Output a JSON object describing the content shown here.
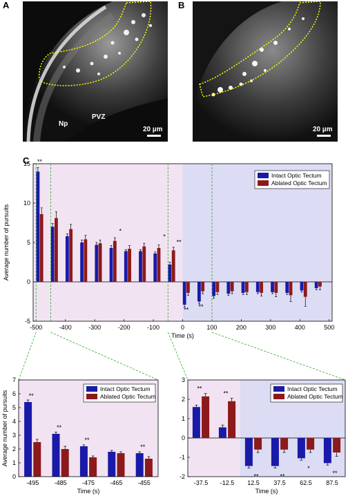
{
  "panels": {
    "a": {
      "label": "A",
      "region_labels": [
        "Np",
        "PVZ"
      ],
      "scalebar": "20 µm"
    },
    "b": {
      "label": "B",
      "scalebar": "20 µm"
    },
    "c": {
      "label": "C"
    }
  },
  "colors": {
    "intact": "#1a1aa8",
    "ablated": "#8c1a1a",
    "pre_bg": "#f2e3f2",
    "post_bg": "#dcdcf4",
    "zoom": "#22aa22",
    "outline": "#ffff00"
  },
  "chart_data": [
    {
      "type": "bar",
      "xlabel": "Time (s)",
      "ylabel": "Average number of pursuits",
      "xlim": [
        -510,
        510
      ],
      "ylim": [
        -5,
        15
      ],
      "xticks": [
        -500,
        -400,
        -300,
        -200,
        -100,
        0,
        100,
        200,
        300,
        400,
        500
      ],
      "yticks": [
        -5,
        0,
        5,
        10,
        15
      ],
      "legend": "top-right",
      "x": [
        -487.5,
        -462.5,
        -437.5,
        -412.5,
        -387.5,
        -362.5,
        -337.5,
        -312.5,
        -287.5,
        -262.5,
        -237.5,
        -212.5,
        -187.5,
        -162.5,
        -137.5,
        -112.5,
        -87.5,
        -62.5,
        -37.5,
        -12.5,
        12.5,
        37.5,
        62.5,
        87.5,
        112.5,
        137.5,
        162.5,
        187.5,
        212.5,
        237.5,
        262.5,
        287.5,
        312.5,
        337.5,
        362.5,
        387.5,
        412.5,
        437.5,
        462.5,
        487.5
      ],
      "series": [
        {
          "name": "Intact Optic Tectum",
          "values": [
            14,
            null,
            7,
            null,
            5.8,
            null,
            5,
            null,
            4.7,
            null,
            4.3,
            null,
            3.9,
            null,
            3.9,
            null,
            3.6,
            null,
            2.2,
            null,
            -2.9,
            null,
            -2.5,
            null,
            -1.8,
            null,
            -1.5,
            null,
            -1.4,
            null,
            -1.3,
            null,
            -1.3,
            null,
            -1.4,
            null,
            -1.1,
            null,
            -0.8,
            null
          ]
        },
        {
          "name": "Ablated Optic Tectum",
          "values": [
            8.6,
            null,
            8.1,
            null,
            6.7,
            null,
            5.4,
            null,
            4.9,
            null,
            5.2,
            null,
            4.2,
            null,
            4.5,
            null,
            4.3,
            null,
            4,
            null,
            -1.4,
            null,
            -1.2,
            null,
            -1.3,
            null,
            -1.2,
            null,
            -1.3,
            null,
            -1.4,
            null,
            -1.4,
            null,
            -1.7,
            null,
            -1.9,
            null,
            -0.6,
            null
          ]
        }
      ],
      "errors": {
        "intact": [
          0.5,
          null,
          0.4,
          null,
          0.3,
          null,
          0.3,
          null,
          0.3,
          null,
          0.3,
          null,
          0.2,
          null,
          0.2,
          null,
          0.2,
          null,
          0.3,
          null,
          0.3,
          null,
          0.3,
          null,
          0.3,
          null,
          0.2,
          null,
          0.2,
          null,
          0.2,
          null,
          0.2,
          null,
          0.2,
          null,
          0.2,
          null,
          0.2,
          null
        ],
        "ablated": [
          0.8,
          null,
          0.8,
          null,
          0.6,
          null,
          0.5,
          null,
          0.4,
          null,
          0.4,
          null,
          0.4,
          null,
          0.4,
          null,
          0.4,
          null,
          0.4,
          null,
          0.3,
          null,
          0.3,
          null,
          0.3,
          null,
          0.3,
          null,
          0.3,
          null,
          0.4,
          null,
          0.5,
          null,
          0.8,
          null,
          1.2,
          null,
          0.4,
          null
        ]
      },
      "annotations": [
        {
          "x": -487.5,
          "y": 15,
          "text": "**"
        },
        {
          "x": -212.5,
          "y": 6.2,
          "text": "*"
        },
        {
          "x": -62.5,
          "y": 5.5,
          "text": "*"
        },
        {
          "x": -12.5,
          "y": 4.8,
          "text": "**"
        },
        {
          "x": 12.5,
          "y": -3.8,
          "text": "**"
        },
        {
          "x": 62.5,
          "y": -3.4,
          "text": "**"
        }
      ],
      "shaded_regions": [
        {
          "from": -510,
          "to": 0,
          "kind": "pre"
        },
        {
          "from": 0,
          "to": 510,
          "kind": "post"
        }
      ],
      "zoom_lines_x": [
        -500,
        -450,
        -50,
        100
      ]
    },
    {
      "type": "bar",
      "xlabel": "Time (s)",
      "ylabel": "Average number of pursuits",
      "categories": [
        "-495",
        "-485",
        "-475",
        "-465",
        "-455"
      ],
      "ylim": [
        0,
        7
      ],
      "yticks": [
        0,
        1,
        2,
        3,
        4,
        5,
        6,
        7
      ],
      "legend": "top-right",
      "series": [
        {
          "name": "Intact Optic Tectum",
          "values": [
            5.4,
            3.1,
            2.2,
            1.8,
            1.7
          ]
        },
        {
          "name": "Ablated Optic Tectum",
          "values": [
            2.5,
            2,
            1.4,
            1.7,
            1.3
          ]
        }
      ],
      "errors": {
        "intact": [
          0.15,
          0.12,
          0.1,
          0.1,
          0.1
        ],
        "ablated": [
          0.2,
          0.2,
          0.1,
          0.1,
          0.15
        ]
      },
      "annotations": [
        {
          "index": 0,
          "text": "**"
        },
        {
          "index": 1,
          "text": "**"
        },
        {
          "index": 2,
          "text": "**"
        },
        {
          "index": 4,
          "text": "**"
        }
      ]
    },
    {
      "type": "bar",
      "xlabel": "Time (s)",
      "ylabel": "",
      "categories": [
        "-37.5",
        "-12.5",
        "12.5",
        "37.5",
        "62.5",
        "87.5"
      ],
      "ylim": [
        -2,
        3
      ],
      "yticks": [
        -2,
        -1,
        0,
        1,
        2,
        3
      ],
      "legend": "top-right",
      "series": [
        {
          "name": "Intact Optic Tectum",
          "values": [
            1.6,
            0.55,
            -1.45,
            -1.45,
            -1.05,
            -1.3
          ]
        },
        {
          "name": "Ablated Optic Tectum",
          "values": [
            2.15,
            1.9,
            -0.6,
            -0.6,
            -0.6,
            -0.75
          ]
        }
      ],
      "errors": {
        "intact": [
          0.1,
          0.12,
          0.1,
          0.1,
          0.1,
          0.1
        ],
        "ablated": [
          0.15,
          0.15,
          0.15,
          0.15,
          0.15,
          0.2
        ]
      },
      "annotations": [
        {
          "index": 0,
          "side": "above",
          "text": "**"
        },
        {
          "index": 1,
          "side": "above",
          "text": "**"
        },
        {
          "index": 2,
          "side": "below",
          "text": "**"
        },
        {
          "index": 3,
          "side": "below",
          "text": "**"
        },
        {
          "index": 4,
          "side": "below",
          "text": "*"
        },
        {
          "index": 5,
          "side": "below",
          "text": "**"
        }
      ],
      "shaded_split_index": 2
    }
  ]
}
